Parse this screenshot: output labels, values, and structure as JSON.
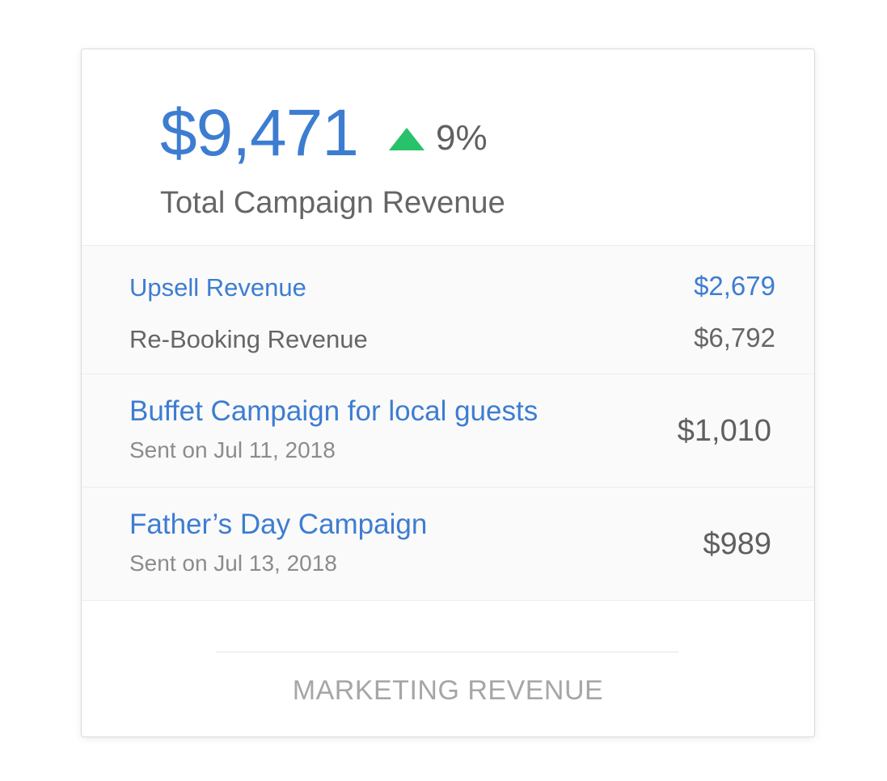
{
  "summary": {
    "total_amount": "$9,471",
    "trend_direction": "up",
    "trend_percent": "9%",
    "trend_color": "#27c26a",
    "label": "Total Campaign Revenue"
  },
  "breakdown": [
    {
      "label": "Upsell Revenue",
      "value": "$2,679",
      "color": "#3d7dd1"
    },
    {
      "label": "Re-Booking Revenue",
      "value": "$6,792",
      "color": "#666666"
    }
  ],
  "campaigns": [
    {
      "name": "Buffet Campaign for local guests",
      "date": "Sent on Jul 11, 2018",
      "value": "$1,010"
    },
    {
      "name": "Father’s Day Campaign",
      "date": "Sent on Jul 13, 2018",
      "value": "$989"
    }
  ],
  "footer": {
    "title": "MARKETING REVENUE"
  },
  "colors": {
    "accent": "#3d7dd1",
    "text": "#666666",
    "muted": "#a6a6a6"
  }
}
